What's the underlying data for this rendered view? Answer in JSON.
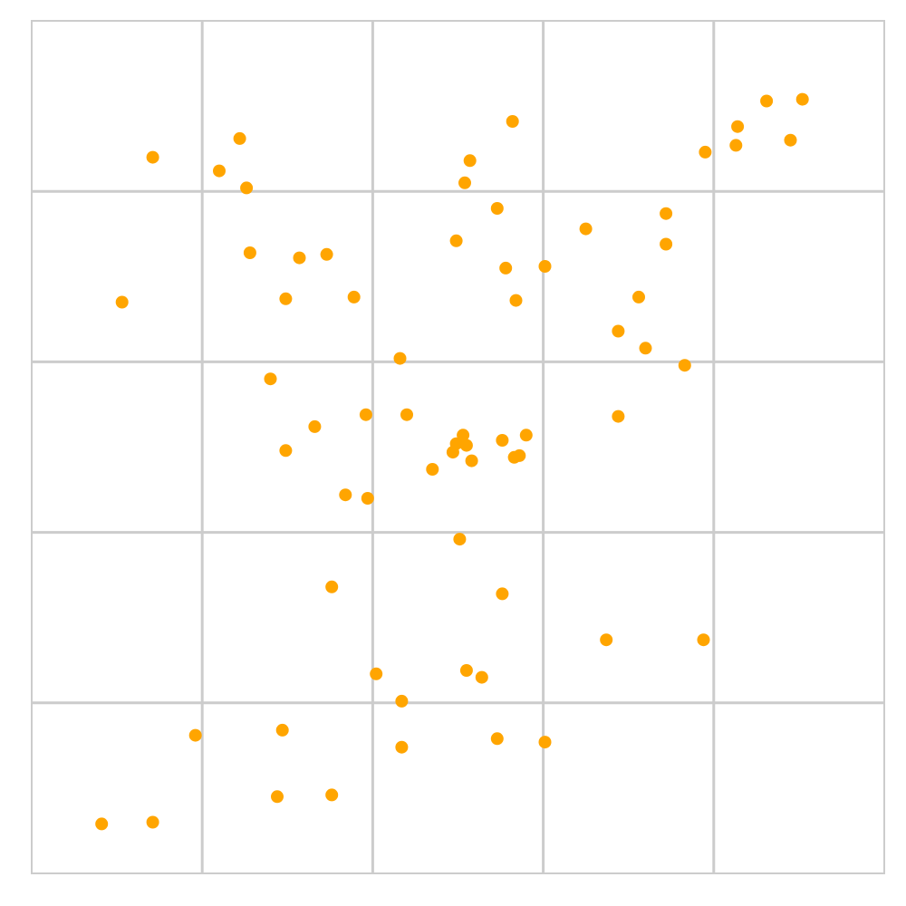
{
  "chart_data": {
    "type": "scatter",
    "title": "",
    "xlabel": "",
    "ylabel": "",
    "xlim": [
      0,
      5
    ],
    "ylim": [
      0,
      5
    ],
    "grid": true,
    "grid_color": "#cccccc",
    "marker_color": "#FFA500",
    "series": [
      {
        "points": [
          [
            0.41,
            0.29
          ],
          [
            0.71,
            0.3
          ],
          [
            0.96,
            0.81
          ],
          [
            1.44,
            0.45
          ],
          [
            1.47,
            0.84
          ],
          [
            1.76,
            0.46
          ],
          [
            2.02,
            1.17
          ],
          [
            2.17,
            0.74
          ],
          [
            2.17,
            1.01
          ],
          [
            2.55,
            1.19
          ],
          [
            2.64,
            1.15
          ],
          [
            2.73,
            0.79
          ],
          [
            3.01,
            0.77
          ],
          [
            3.37,
            1.37
          ],
          [
            3.94,
            1.37
          ],
          [
            1.76,
            1.68
          ],
          [
            2.76,
            1.64
          ],
          [
            2.51,
            1.96
          ],
          [
            1.84,
            2.22
          ],
          [
            1.97,
            2.2
          ],
          [
            1.49,
            2.48
          ],
          [
            1.66,
            2.62
          ],
          [
            1.96,
            2.69
          ],
          [
            2.2,
            2.69
          ],
          [
            2.35,
            2.37
          ],
          [
            2.47,
            2.47
          ],
          [
            2.49,
            2.52
          ],
          [
            2.53,
            2.57
          ],
          [
            2.55,
            2.51
          ],
          [
            2.58,
            2.42
          ],
          [
            2.76,
            2.54
          ],
          [
            2.83,
            2.44
          ],
          [
            2.86,
            2.45
          ],
          [
            2.9,
            2.57
          ],
          [
            3.44,
            2.68
          ],
          [
            1.4,
            2.9
          ],
          [
            2.16,
            3.02
          ],
          [
            3.83,
            2.98
          ],
          [
            3.6,
            3.08
          ],
          [
            3.44,
            3.18
          ],
          [
            0.53,
            3.35
          ],
          [
            1.49,
            3.37
          ],
          [
            1.89,
            3.38
          ],
          [
            2.84,
            3.36
          ],
          [
            3.56,
            3.38
          ],
          [
            1.28,
            3.64
          ],
          [
            1.57,
            3.61
          ],
          [
            1.73,
            3.63
          ],
          [
            2.49,
            3.71
          ],
          [
            2.78,
            3.55
          ],
          [
            3.01,
            3.56
          ],
          [
            3.25,
            3.78
          ],
          [
            3.72,
            3.87
          ],
          [
            3.72,
            3.69
          ],
          [
            2.73,
            3.9
          ],
          [
            0.71,
            4.2
          ],
          [
            1.1,
            4.12
          ],
          [
            1.22,
            4.31
          ],
          [
            1.26,
            4.02
          ],
          [
            2.54,
            4.05
          ],
          [
            2.57,
            4.18
          ],
          [
            2.82,
            4.41
          ],
          [
            3.95,
            4.23
          ],
          [
            4.13,
            4.27
          ],
          [
            4.14,
            4.38
          ],
          [
            4.31,
            4.53
          ],
          [
            4.45,
            4.3
          ],
          [
            4.52,
            4.54
          ]
        ]
      }
    ]
  }
}
